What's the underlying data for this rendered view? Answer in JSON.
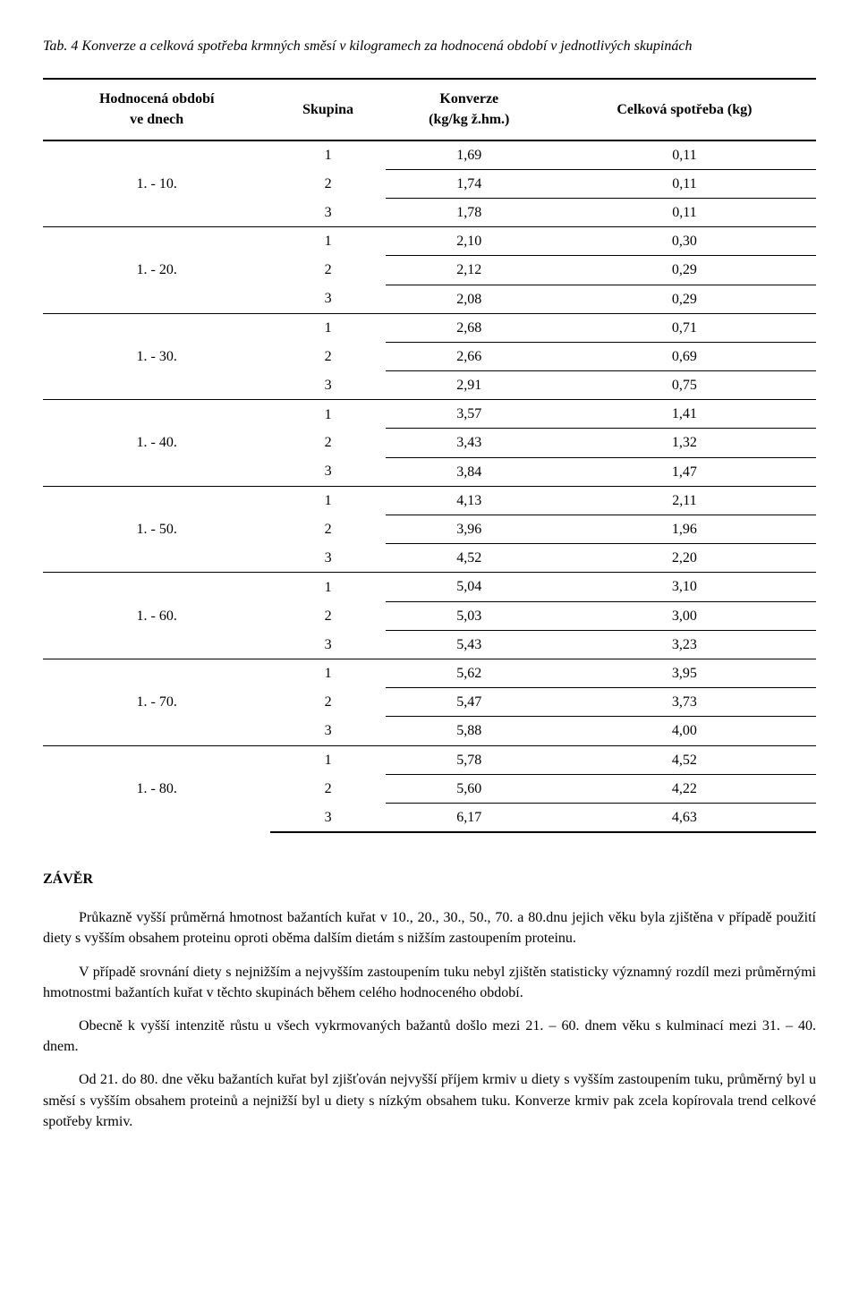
{
  "caption": "Tab. 4 Konverze a celková spotřeba krmných směsí v kilogramech za hodnocená období v jednotlivých skupinách",
  "table": {
    "columns": [
      {
        "label_l1": "Hodnocená období",
        "label_l2": "ve dnech",
        "width": "25%"
      },
      {
        "label_l1": "Skupina",
        "label_l2": "",
        "width": "20%"
      },
      {
        "label_l1": "Konverze",
        "label_l2": "(kg/kg ž.hm.)",
        "width": "27%"
      },
      {
        "label_l1": "Celková spotřeba (kg)",
        "label_l2": "",
        "width": "28%"
      }
    ],
    "groups": [
      {
        "period": "1. - 10.",
        "rows": [
          {
            "sk": "1",
            "konv": "1,69",
            "spot": "0,11"
          },
          {
            "sk": "2",
            "konv": "1,74",
            "spot": "0,11"
          },
          {
            "sk": "3",
            "konv": "1,78",
            "spot": "0,11"
          }
        ]
      },
      {
        "period": "1. - 20.",
        "rows": [
          {
            "sk": "1",
            "konv": "2,10",
            "spot": "0,30"
          },
          {
            "sk": "2",
            "konv": "2,12",
            "spot": "0,29"
          },
          {
            "sk": "3",
            "konv": "2,08",
            "spot": "0,29"
          }
        ]
      },
      {
        "period": "1. - 30.",
        "rows": [
          {
            "sk": "1",
            "konv": "2,68",
            "spot": "0,71"
          },
          {
            "sk": "2",
            "konv": "2,66",
            "spot": "0,69"
          },
          {
            "sk": "3",
            "konv": "2,91",
            "spot": "0,75"
          }
        ]
      },
      {
        "period": "1. - 40.",
        "rows": [
          {
            "sk": "1",
            "konv": "3,57",
            "spot": "1,41"
          },
          {
            "sk": "2",
            "konv": "3,43",
            "spot": "1,32"
          },
          {
            "sk": "3",
            "konv": "3,84",
            "spot": "1,47"
          }
        ]
      },
      {
        "period": "1. - 50.",
        "rows": [
          {
            "sk": "1",
            "konv": "4,13",
            "spot": "2,11"
          },
          {
            "sk": "2",
            "konv": "3,96",
            "spot": "1,96"
          },
          {
            "sk": "3",
            "konv": "4,52",
            "spot": "2,20"
          }
        ]
      },
      {
        "period": "1. - 60.",
        "rows": [
          {
            "sk": "1",
            "konv": "5,04",
            "spot": "3,10"
          },
          {
            "sk": "2",
            "konv": "5,03",
            "spot": "3,00"
          },
          {
            "sk": "3",
            "konv": "5,43",
            "spot": "3,23"
          }
        ]
      },
      {
        "period": "1. - 70.",
        "rows": [
          {
            "sk": "1",
            "konv": "5,62",
            "spot": "3,95"
          },
          {
            "sk": "2",
            "konv": "5,47",
            "spot": "3,73"
          },
          {
            "sk": "3",
            "konv": "5,88",
            "spot": "4,00"
          }
        ]
      },
      {
        "period": "1. - 80.",
        "rows": [
          {
            "sk": "1",
            "konv": "5,78",
            "spot": "4,52"
          },
          {
            "sk": "2",
            "konv": "5,60",
            "spot": "4,22"
          },
          {
            "sk": "3",
            "konv": "6,17",
            "spot": "4,63"
          }
        ]
      }
    ]
  },
  "section_heading": "ZÁVĚR",
  "paragraphs": {
    "p1": "Průkazně vyšší průměrná hmotnost bažantích kuřat v 10., 20., 30., 50., 70. a 80.dnu jejich věku byla zjištěna v případě použití diety s vyšším obsahem proteinu oproti oběma dalším dietám s nižším zastoupením proteinu.",
    "p2": "V případě srovnání diety s nejnižším a nejvyšším zastoupením tuku nebyl zjištěn statisticky významný rozdíl mezi průměrnými hmotnostmi bažantích kuřat v těchto skupinách během celého hodnoceného období.",
    "p3": "Obecně k vyšší intenzitě růstu u všech vykrmovaných bažantů došlo mezi 21. – 60. dnem věku s kulminací mezi 31. – 40. dnem.",
    "p4": "Od 21. do 80. dne věku bažantích kuřat byl zjišťován nejvyšší příjem krmiv u diety s vyšším zastoupením tuku, průměrný byl u směsí s vyšším obsahem proteinů a nejnižší byl u diety s nízkým obsahem tuku. Konverze krmiv pak zcela kopírovala trend celkové spotřeby krmiv."
  }
}
